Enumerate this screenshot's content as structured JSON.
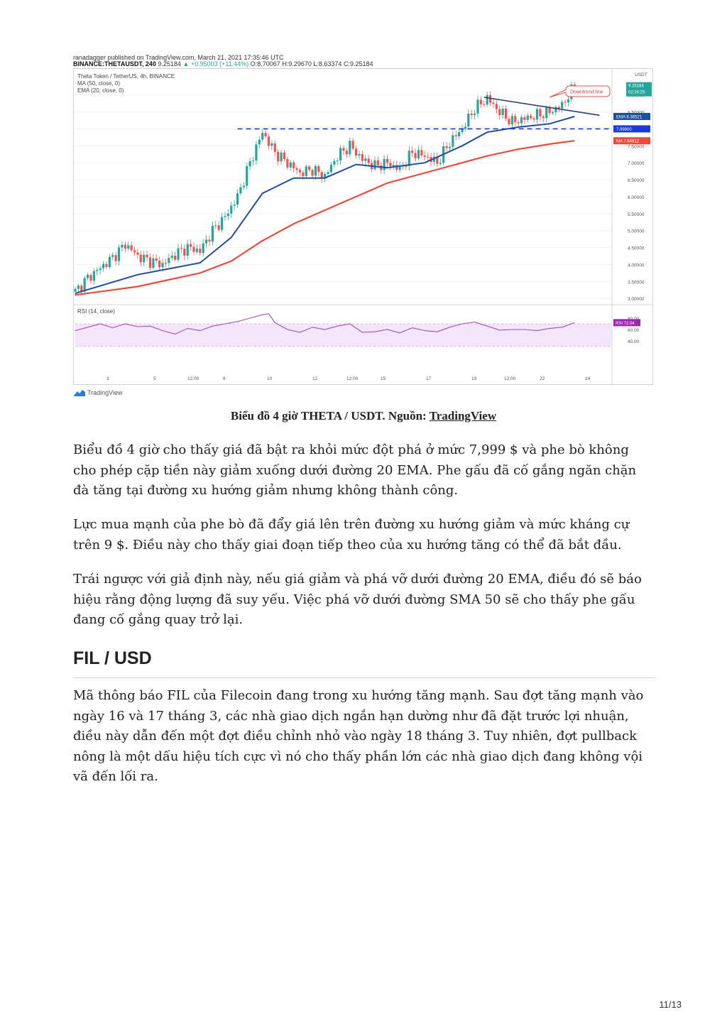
{
  "figure": {
    "published_line": "ranadagger published on TradingView.com, March 21, 2021 17:35:46 UTC",
    "symbol_line": {
      "symbol": "BINANCE:THETAUSDT, 240",
      "price": "9.25184",
      "change": "▲ +0.95003 (+11.44%)",
      "open": "O:8.70067",
      "high": "H:9.29670",
      "low": "L:8.63374",
      "close": "C:9.25184"
    },
    "pair_title": "Theta Token / TetherUS, 4h, BINANCE",
    "indicator_ma": "MA (50, close, 0)",
    "indicator_ema": "EMA (20, close, 0)",
    "rsi_label": "RSI (14, close)",
    "annotation": "Downtrend line",
    "currency": "USDT",
    "price_tag": "9.25184",
    "countdown": "02:24:25",
    "ema_tag": "EMA",
    "ema_value": "8.36521",
    "level_value": "7.99900",
    "ma_tag": "MA",
    "ma_value": "7.64812",
    "rsi_tag": "RSI",
    "rsi_value": "72.04",
    "logo_text": "TradingView",
    "colors": {
      "up": "#26a69a",
      "down": "#ef5350",
      "ema": "#1f4e9c",
      "ma": "#e84c3d",
      "level": "#1a3bd8",
      "rsi_line": "#a24cc4",
      "rsi_band": "#f3e6fb"
    }
  },
  "chart_data": {
    "type": "candlestick",
    "symbol": "THETA/USDT",
    "timeframe": "4h",
    "price_axis": {
      "ticks": [
        "9.00000",
        "8.50000",
        "8.00000",
        "7.50000",
        "7.00000",
        "6.50000",
        "6.00000",
        "5.50000",
        "5.00000",
        "4.50000",
        "4.00000",
        "3.50000",
        "3.00000"
      ],
      "range": [
        2.9,
        9.6
      ]
    },
    "time_axis": {
      "ticks": [
        "3",
        "5",
        "12:00",
        "8",
        "10",
        "12",
        "12:00",
        "15",
        "17",
        "19",
        "12:00",
        "22",
        "24"
      ]
    },
    "horizontal_level": 7.999,
    "close_path": [
      [
        0,
        3.2
      ],
      [
        4,
        3.6
      ],
      [
        8,
        3.9
      ],
      [
        12,
        4.2
      ],
      [
        16,
        4.6
      ],
      [
        20,
        4.25
      ],
      [
        24,
        4.1
      ],
      [
        28,
        4.0
      ],
      [
        32,
        4.3
      ],
      [
        36,
        4.5
      ],
      [
        40,
        4.4
      ],
      [
        44,
        5.0
      ],
      [
        48,
        5.4
      ],
      [
        52,
        6.0
      ],
      [
        56,
        7.0
      ],
      [
        60,
        7.9
      ],
      [
        64,
        7.3
      ],
      [
        68,
        7.0
      ],
      [
        72,
        6.7
      ],
      [
        76,
        6.8
      ],
      [
        80,
        6.6
      ],
      [
        84,
        7.2
      ],
      [
        88,
        7.5
      ],
      [
        92,
        7.1
      ],
      [
        96,
        6.9
      ],
      [
        100,
        7.0
      ],
      [
        104,
        6.8
      ],
      [
        108,
        7.3
      ],
      [
        112,
        7.2
      ],
      [
        116,
        7.0
      ],
      [
        120,
        7.6
      ],
      [
        124,
        8.0
      ],
      [
        128,
        8.6
      ],
      [
        132,
        8.9
      ],
      [
        136,
        8.5
      ],
      [
        140,
        8.2
      ],
      [
        144,
        8.3
      ],
      [
        148,
        8.4
      ],
      [
        152,
        8.5
      ],
      [
        156,
        8.7
      ],
      [
        160,
        9.25
      ]
    ],
    "ema20": [
      [
        0,
        3.15
      ],
      [
        20,
        3.7
      ],
      [
        40,
        4.05
      ],
      [
        50,
        4.8
      ],
      [
        60,
        6.1
      ],
      [
        70,
        6.55
      ],
      [
        80,
        6.55
      ],
      [
        90,
        6.95
      ],
      [
        100,
        6.85
      ],
      [
        112,
        7.0
      ],
      [
        124,
        7.5
      ],
      [
        132,
        7.9
      ],
      [
        142,
        8.05
      ],
      [
        152,
        8.15
      ],
      [
        160,
        8.365
      ]
    ],
    "sma50": [
      [
        0,
        3.1
      ],
      [
        20,
        3.35
      ],
      [
        40,
        3.75
      ],
      [
        50,
        4.1
      ],
      [
        60,
        4.7
      ],
      [
        70,
        5.2
      ],
      [
        80,
        5.6
      ],
      [
        90,
        6.0
      ],
      [
        100,
        6.4
      ],
      [
        112,
        6.7
      ],
      [
        124,
        7.0
      ],
      [
        132,
        7.2
      ],
      [
        142,
        7.4
      ],
      [
        152,
        7.55
      ],
      [
        160,
        7.648
      ]
    ],
    "downtrend_line": [
      [
        131,
        8.93
      ],
      [
        168,
        8.4
      ]
    ],
    "rsi": {
      "ticks": [
        "80.00",
        "60.00",
        "40.00"
      ],
      "band": [
        30,
        70
      ],
      "values": [
        [
          0,
          58
        ],
        [
          4,
          64
        ],
        [
          8,
          70
        ],
        [
          12,
          63
        ],
        [
          16,
          70
        ],
        [
          20,
          65
        ],
        [
          24,
          66
        ],
        [
          28,
          58
        ],
        [
          32,
          52
        ],
        [
          36,
          62
        ],
        [
          40,
          58
        ],
        [
          44,
          66
        ],
        [
          48,
          70
        ],
        [
          52,
          74
        ],
        [
          56,
          80
        ],
        [
          60,
          86
        ],
        [
          62,
          88
        ],
        [
          64,
          72
        ],
        [
          68,
          60
        ],
        [
          72,
          55
        ],
        [
          76,
          64
        ],
        [
          80,
          60
        ],
        [
          84,
          66
        ],
        [
          88,
          70
        ],
        [
          92,
          55
        ],
        [
          96,
          56
        ],
        [
          100,
          60
        ],
        [
          104,
          54
        ],
        [
          108,
          63
        ],
        [
          112,
          58
        ],
        [
          116,
          56
        ],
        [
          120,
          64
        ],
        [
          124,
          70
        ],
        [
          128,
          73
        ],
        [
          132,
          66
        ],
        [
          136,
          59
        ],
        [
          140,
          60
        ],
        [
          144,
          60
        ],
        [
          148,
          58
        ],
        [
          152,
          62
        ],
        [
          156,
          64
        ],
        [
          160,
          72.04
        ]
      ]
    }
  },
  "caption": {
    "text": "Biểu đồ 4 giờ THETA / USDT. Nguồn: ",
    "link": "TradingView"
  },
  "paragraphs": {
    "p1": "Biểu đồ 4 giờ cho thấy giá đã bật ra khỏi mức đột phá ở mức 7,999 $ và phe bò không cho phép cặp tiền này giảm xuống dưới đường 20 EMA. Phe gấu đã cố gắng ngăn chặn đà tăng tại đường xu hướng giảm nhưng không thành công.",
    "p2": "Lực mua mạnh của phe bò đã đẩy giá lên trên đường xu hướng giảm và mức kháng cự trên 9 $. Điều này cho thấy giai đoạn tiếp theo của xu hướng tăng có thể đã bắt đầu.",
    "p3": "Trái ngược với giả định này, nếu giá giảm và phá vỡ dưới đường 20 EMA, điều đó sẽ báo hiệu rằng động lượng đã suy yếu. Việc phá vỡ dưới đường SMA 50 sẽ cho thấy phe gấu đang cố gắng quay trở lại.",
    "p4": "Mã thông báo FIL của Filecoin đang trong xu hướng tăng mạnh. Sau đợt tăng mạnh vào ngày 16 và 17 tháng 3, các nhà giao dịch ngắn hạn dường như đã đặt trước lợi nhuận, điều này dẫn đến một đợt điều chỉnh nhỏ vào ngày 18 tháng 3. Tuy nhiên, đợt pullback nông là một dấu hiệu tích cực vì nó cho thấy phần lớn các nhà giao dịch đang không vội vã đến lối ra."
  },
  "section_title": "FIL / USD",
  "page_number": "11/13"
}
